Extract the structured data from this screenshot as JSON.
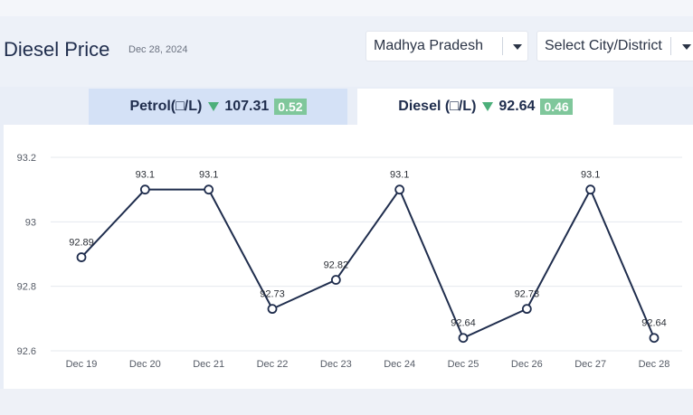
{
  "header": {
    "title": "Diesel Price",
    "date": "Dec 28, 2024",
    "state_select": "Madhya Pradesh",
    "city_select": "Select City/District"
  },
  "tabs": {
    "petrol": {
      "label": "Petrol(□/L)",
      "price": "107.31",
      "change": "0.52",
      "trend": "down"
    },
    "diesel": {
      "label": "Diesel (□/L)",
      "price": "92.64",
      "change": "0.46",
      "trend": "down",
      "active": true
    }
  },
  "colors": {
    "line": "#1f2d4d",
    "grid": "#e5e8ee",
    "tab_active_bg": "#ffffff",
    "tab_inactive_bg": "#d4e1f6",
    "change_badge": "#7fc79b",
    "trend_down": "#4caf7a"
  },
  "chart_data": {
    "type": "line",
    "categories": [
      "Dec 19",
      "Dec 20",
      "Dec 21",
      "Dec 22",
      "Dec 23",
      "Dec 24",
      "Dec 25",
      "Dec 26",
      "Dec 27",
      "Dec 28"
    ],
    "values": [
      92.89,
      93.1,
      93.1,
      92.73,
      92.82,
      93.1,
      92.64,
      92.73,
      93.1,
      92.64
    ],
    "ylim": [
      92.6,
      93.2
    ],
    "yticks": [
      93.2,
      93,
      92.8,
      92.6
    ],
    "grid": true,
    "markers": "hollow-circle",
    "data_labels": true
  }
}
